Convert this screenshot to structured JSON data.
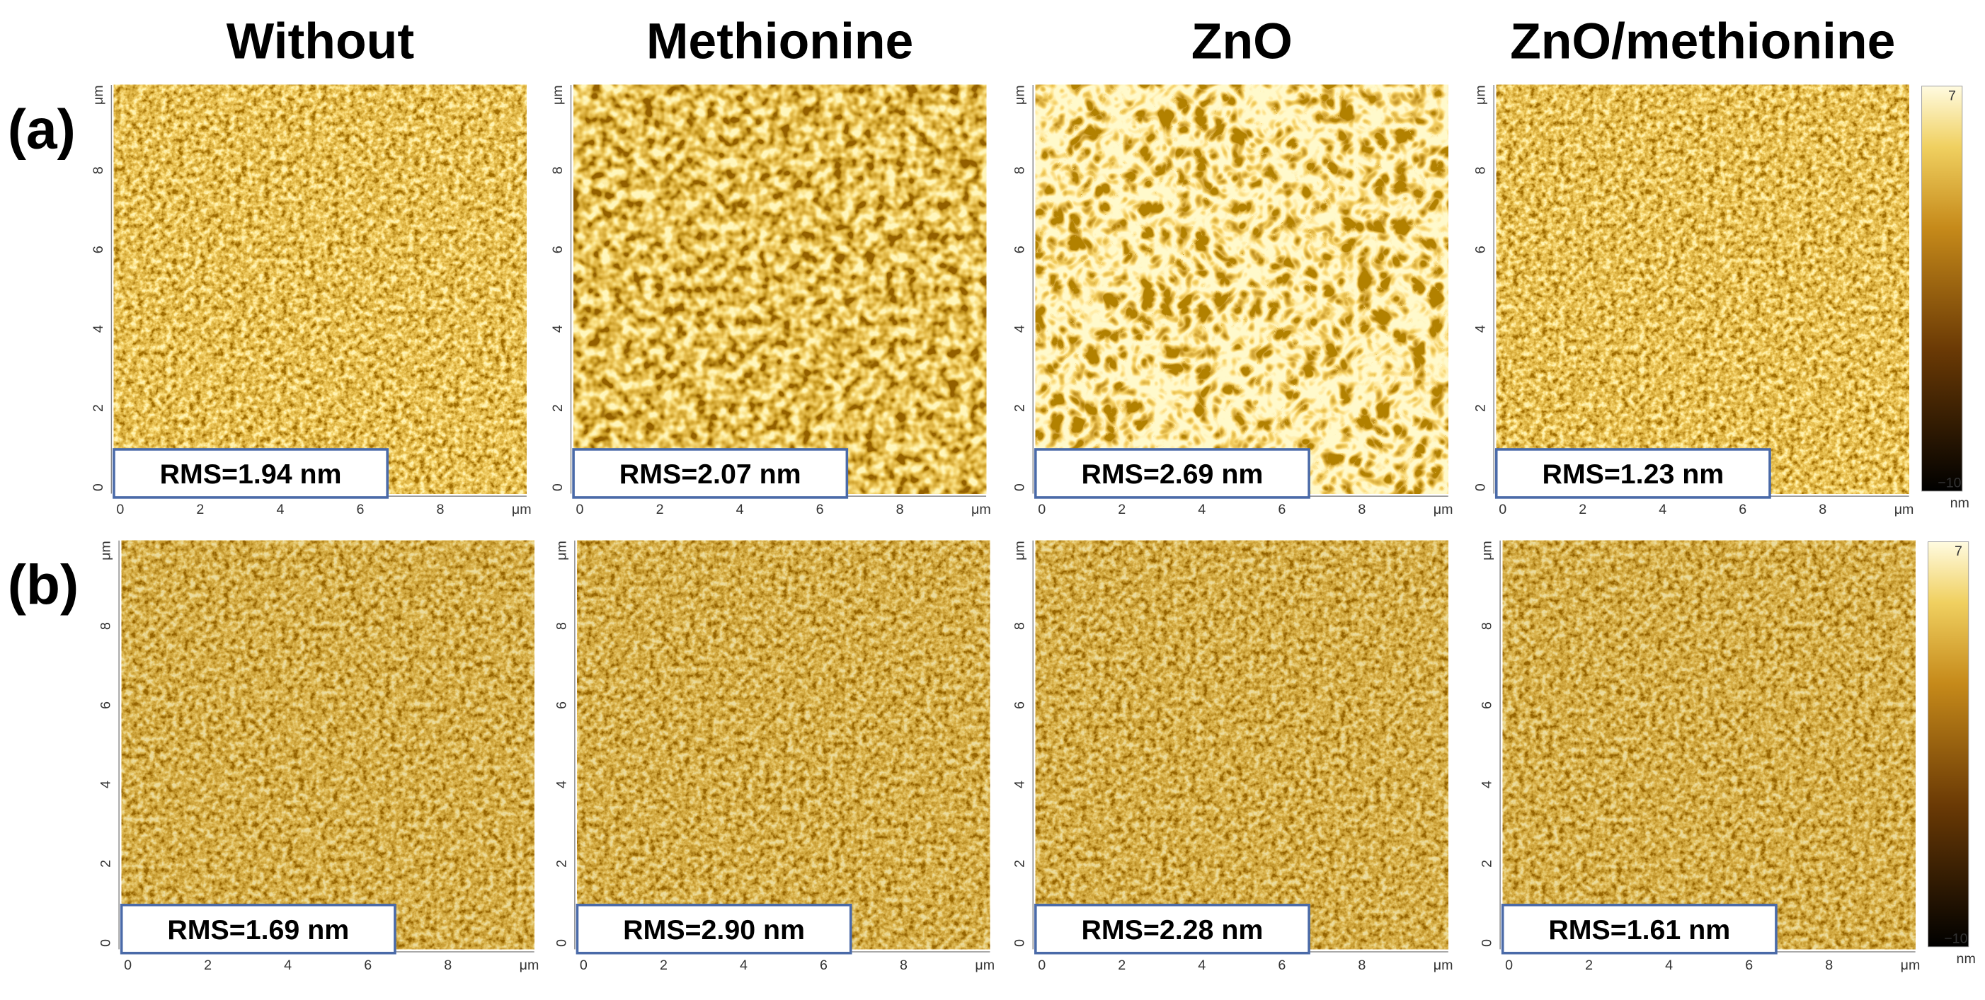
{
  "columns": [
    "Without",
    "Methionine",
    "ZnO",
    "ZnO/methionine"
  ],
  "rows": [
    {
      "label": "(a)",
      "rms": [
        "RMS=1.94 nm",
        "RMS=2.07 nm",
        "RMS=2.69 nm",
        "RMS=1.23 nm"
      ]
    },
    {
      "label": "(b)",
      "rms": [
        "RMS=1.69 nm",
        "RMS=2.90 nm",
        "RMS=2.28 nm",
        "RMS=1.61 nm"
      ]
    }
  ],
  "axis": {
    "ticks": [
      "0",
      "2",
      "4",
      "6",
      "8"
    ],
    "unit": "μm"
  },
  "colorbar": {
    "max": "7",
    "min": "−10",
    "unit": "nm"
  }
}
